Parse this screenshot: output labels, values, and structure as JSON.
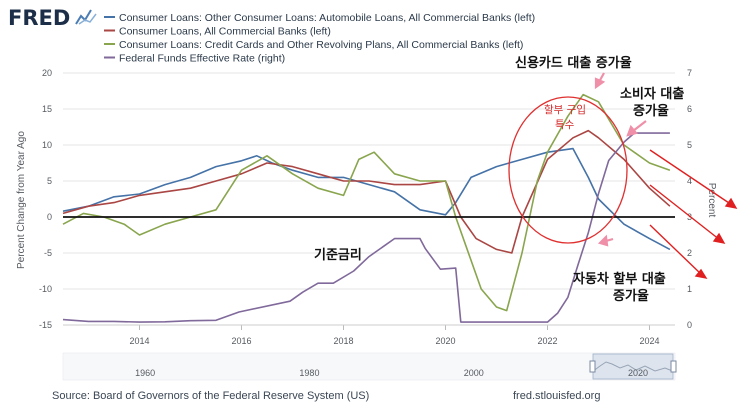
{
  "logo": {
    "text": "FRED"
  },
  "footer": {
    "source": "Source: Board of Governors of the Federal Reserve System (US)",
    "site": "fred.stlouisfed.org"
  },
  "colors": {
    "auto": "#4572a7",
    "consumer": "#aa4643",
    "credit": "#89a54e",
    "fedfunds": "#80699b",
    "annotation": "#e03030"
  },
  "chart_data": {
    "type": "line",
    "title": "",
    "ylabel_left": "Percent Change from Year Ago",
    "ylabel_right": "Percent",
    "left_axis": {
      "range": [
        -15,
        20
      ],
      "ticks": [
        "20",
        "15",
        "10",
        "5",
        "0",
        "-5",
        "-10",
        "-15"
      ]
    },
    "right_axis": {
      "range": [
        0,
        7
      ],
      "ticks": [
        "7",
        "6",
        "5",
        "4",
        "3",
        "2",
        "1",
        "0"
      ]
    },
    "x_ticks": [
      "2014",
      "2016",
      "2018",
      "2020",
      "2022",
      "2024"
    ],
    "x_range": [
      2012.5,
      2024.5
    ],
    "navigator_ticks": [
      "1960",
      "1980",
      "2000",
      "2020"
    ],
    "series": [
      {
        "name": "Consumer Loans: Other Consumer Loans: Automobile Loans, All Commercial Banks (left)",
        "axis": "left",
        "color": "#4572a7",
        "x": [
          2012.5,
          2013,
          2013.5,
          2014,
          2014.5,
          2015,
          2015.5,
          2016,
          2016.3,
          2016.6,
          2017,
          2017.5,
          2018,
          2018.5,
          2019,
          2019.5,
          2020,
          2020.2,
          2020.5,
          2021,
          2021.5,
          2022,
          2022.5,
          2022.8,
          2023,
          2023.5,
          2024,
          2024.4
        ],
        "y": [
          0.8,
          1.5,
          2.8,
          3.2,
          4.5,
          5.5,
          7.0,
          7.8,
          8.5,
          7.5,
          6.5,
          5.5,
          5.5,
          4.5,
          3.5,
          1.0,
          0.3,
          2.0,
          5.5,
          7.0,
          8.0,
          9.0,
          9.5,
          5.5,
          2.5,
          -1.0,
          -3.0,
          -4.5
        ]
      },
      {
        "name": "Consumer Loans, All Commercial Banks (left)",
        "axis": "left",
        "color": "#aa4643",
        "x": [
          2012.5,
          2013,
          2013.5,
          2014,
          2014.5,
          2015,
          2015.5,
          2016,
          2016.5,
          2017,
          2017.5,
          2018,
          2018.5,
          2019,
          2019.5,
          2020,
          2020.3,
          2020.6,
          2021,
          2021.3,
          2021.5,
          2022,
          2022.5,
          2022.8,
          2023,
          2023.5,
          2024,
          2024.4
        ],
        "y": [
          0.5,
          1.5,
          2.0,
          3.0,
          3.5,
          4.0,
          5.0,
          6.0,
          7.5,
          7.0,
          6.0,
          5.0,
          5.0,
          4.5,
          4.5,
          5.0,
          0.0,
          -3.0,
          -4.5,
          -5.0,
          0.0,
          8.0,
          11.0,
          12.0,
          11.0,
          8.0,
          4.0,
          1.5
        ]
      },
      {
        "name": "Consumer Loans: Credit Cards and Other Revolving Plans, All Commercial Banks (left)",
        "axis": "left",
        "color": "#89a54e",
        "x": [
          2012.5,
          2012.9,
          2013.3,
          2013.7,
          2014,
          2014.5,
          2015,
          2015.5,
          2016,
          2016.5,
          2017,
          2017.5,
          2018,
          2018.3,
          2018.6,
          2019,
          2019.5,
          2020,
          2020.2,
          2020.4,
          2020.7,
          2021,
          2021.2,
          2021.5,
          2021.8,
          2022,
          2022.4,
          2022.7,
          2023,
          2023.5,
          2024,
          2024.4
        ],
        "y": [
          -1.0,
          0.5,
          0.0,
          -1.0,
          -2.5,
          -1.0,
          0.0,
          1.0,
          6.5,
          8.5,
          6.0,
          4.0,
          3.0,
          8.0,
          9.0,
          6.0,
          5.0,
          5.0,
          0.0,
          -4.0,
          -10.0,
          -12.5,
          -13.0,
          -5.0,
          5.0,
          9.0,
          14.0,
          17.0,
          16.0,
          10.0,
          7.5,
          6.5
        ]
      },
      {
        "name": "Federal Funds Effective Rate (right)",
        "axis": "right",
        "color": "#80699b",
        "x": [
          2012.5,
          2013,
          2013.5,
          2014,
          2014.5,
          2015,
          2015.5,
          2015.95,
          2016.95,
          2017.2,
          2017.5,
          2017.8,
          2018.2,
          2018.5,
          2018.8,
          2019,
          2019.5,
          2019.6,
          2019.9,
          2020.2,
          2020.3,
          2021,
          2021.5,
          2022,
          2022.2,
          2022.4,
          2022.6,
          2022.8,
          2023,
          2023.2,
          2023.5,
          2023.7,
          2024,
          2024.4
        ],
        "y": [
          0.15,
          0.1,
          0.1,
          0.08,
          0.09,
          0.12,
          0.13,
          0.36,
          0.66,
          0.91,
          1.16,
          1.16,
          1.5,
          1.9,
          2.2,
          2.4,
          2.4,
          2.13,
          1.55,
          1.58,
          0.08,
          0.08,
          0.08,
          0.08,
          0.33,
          0.77,
          1.68,
          2.56,
          3.65,
          4.57,
          5.08,
          5.33,
          5.33,
          5.33
        ]
      }
    ],
    "legend": [
      "Consumer Loans: Other Consumer Loans: Automobile Loans, All Commercial Banks (left)",
      "Consumer Loans, All Commercial Banks (left)",
      "Consumer Loans: Credit Cards and Other Revolving Plans, All Commercial Banks (left)",
      "Federal Funds Effective Rate (right)"
    ],
    "annotations": {
      "credit": "신용카드 대출 증가율",
      "consumer_line1": "소비자 대출",
      "consumer_line2": "증가율",
      "covid_line1": "할부 구입",
      "covid_line2": "특수",
      "rate": "기준금리",
      "auto_line1": "자동차 할부 대출",
      "auto_line2": "증가율"
    }
  }
}
